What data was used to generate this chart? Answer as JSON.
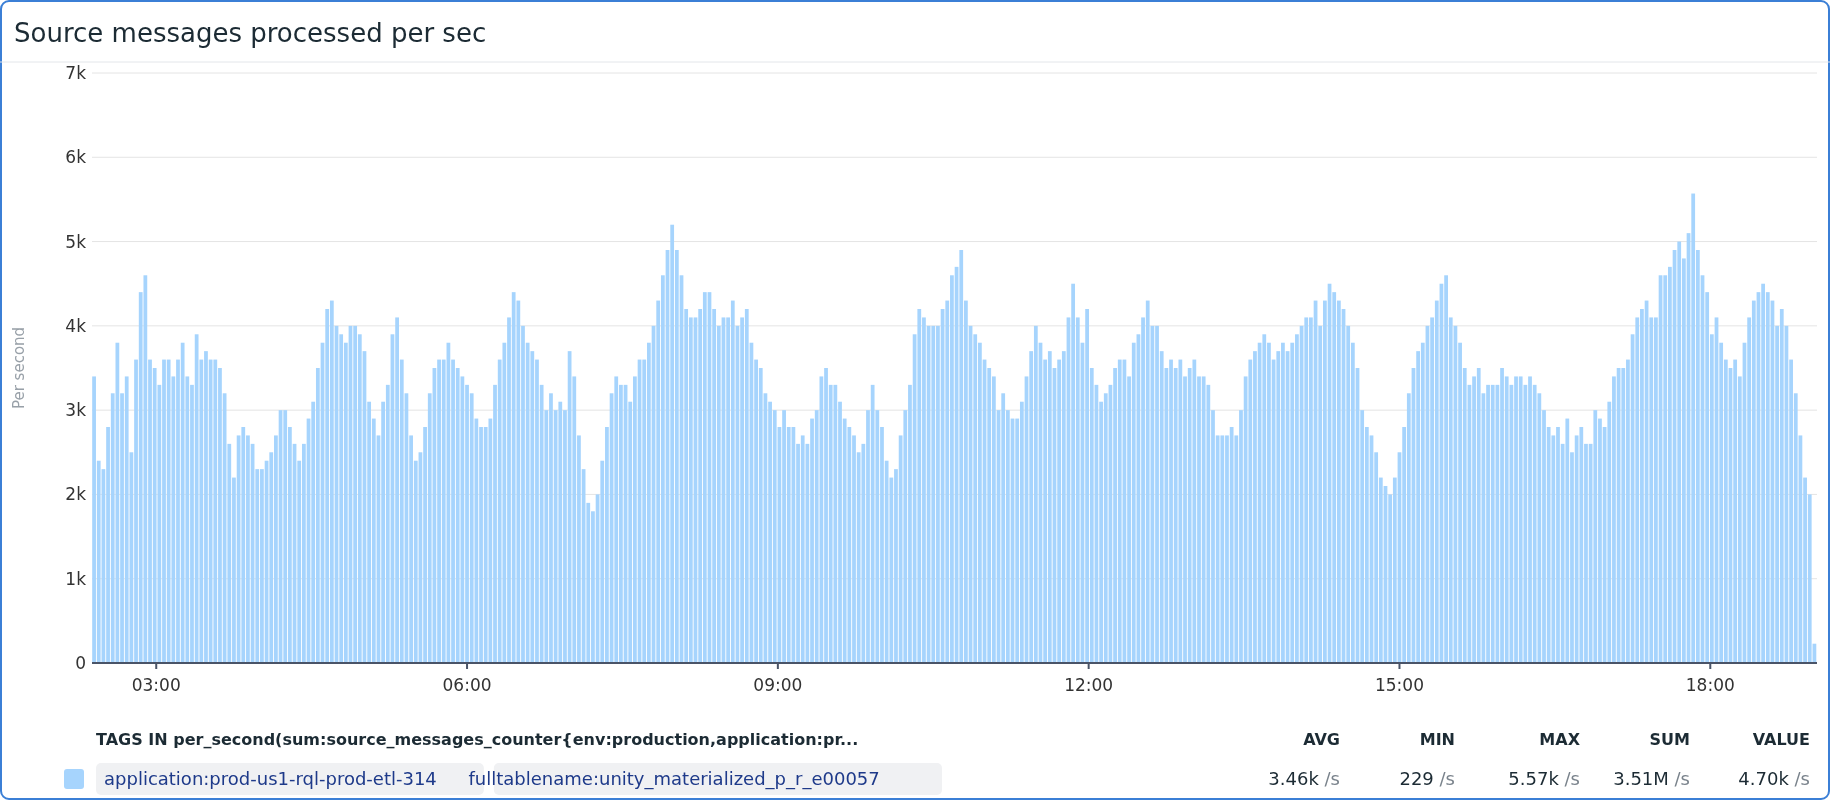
{
  "chart_data": {
    "type": "bar",
    "title": "Source messages processed per sec",
    "ylabel": "Per second",
    "legend_title": "TAGS IN per_second(sum:source_messages_counter{env:production,application:pr...",
    "annotations": [
      "AVG",
      "MIN",
      "MAX",
      "SUM",
      "VALUE",
      "3.46k /s",
      "229 /s",
      "5.57k /s",
      "3.51M /s",
      "4.70k /s"
    ],
    "grid": "y",
    "legend": "bottom",
    "xlim": [
      2.38,
      19.03
    ],
    "xticks": [
      {
        "value": 3,
        "label": "03:00"
      },
      {
        "value": 6,
        "label": "06:00"
      },
      {
        "value": 9,
        "label": "09:00"
      },
      {
        "value": 12,
        "label": "12:00"
      },
      {
        "value": 15,
        "label": "15:00"
      },
      {
        "value": 18,
        "label": "18:00"
      }
    ],
    "ylim": [
      0,
      7000
    ],
    "yticks": [
      {
        "value": 0,
        "label": "0"
      },
      {
        "value": 1000,
        "label": "1k"
      },
      {
        "value": 2000,
        "label": "2k"
      },
      {
        "value": 3000,
        "label": "3k"
      },
      {
        "value": 4000,
        "label": "4k"
      },
      {
        "value": 5000,
        "label": "5k"
      },
      {
        "value": 6000,
        "label": "6k"
      },
      {
        "value": 7000,
        "label": "7k"
      }
    ],
    "x": [
      2.4,
      2.445,
      2.49,
      2.535,
      2.58,
      2.625,
      2.67,
      2.715,
      2.76,
      2.805,
      2.85,
      2.895,
      2.94,
      2.985,
      3.03,
      3.075,
      3.12,
      3.165,
      3.21,
      3.255,
      3.3,
      3.345,
      3.39,
      3.435,
      3.48,
      3.525,
      3.57,
      3.615,
      3.66,
      3.705,
      3.75,
      3.795,
      3.84,
      3.885,
      3.93,
      3.975,
      4.02,
      4.065,
      4.11,
      4.155,
      4.2,
      4.245,
      4.29,
      4.335,
      4.38,
      4.425,
      4.47,
      4.515,
      4.56,
      4.605,
      4.65,
      4.695,
      4.74,
      4.785,
      4.83,
      4.875,
      4.92,
      4.965,
      5.01,
      5.055,
      5.1,
      5.145,
      5.19,
      5.235,
      5.28,
      5.325,
      5.37,
      5.415,
      5.46,
      5.505,
      5.55,
      5.595,
      5.64,
      5.685,
      5.73,
      5.775,
      5.82,
      5.865,
      5.91,
      5.955,
      6,
      6.045,
      6.09,
      6.135,
      6.18,
      6.225,
      6.27,
      6.315,
      6.36,
      6.405,
      6.45,
      6.495,
      6.54,
      6.585,
      6.63,
      6.675,
      6.72,
      6.765,
      6.81,
      6.855,
      6.9,
      6.945,
      6.99,
      7.035,
      7.08,
      7.125,
      7.17,
      7.215,
      7.26,
      7.305,
      7.35,
      7.395,
      7.44,
      7.485,
      7.53,
      7.575,
      7.62,
      7.665,
      7.71,
      7.755,
      7.8,
      7.845,
      7.89,
      7.935,
      7.98,
      8.025,
      8.07,
      8.115,
      8.16,
      8.205,
      8.25,
      8.295,
      8.34,
      8.385,
      8.43,
      8.475,
      8.52,
      8.565,
      8.61,
      8.655,
      8.7,
      8.745,
      8.79,
      8.835,
      8.88,
      8.925,
      8.97,
      9.015,
      9.06,
      9.105,
      9.15,
      9.195,
      9.24,
      9.285,
      9.33,
      9.375,
      9.42,
      9.465,
      9.51,
      9.555,
      9.6,
      9.645,
      9.69,
      9.735,
      9.78,
      9.825,
      9.87,
      9.915,
      9.96,
      10.005,
      10.05,
      10.095,
      10.14,
      10.185,
      10.23,
      10.275,
      10.32,
      10.365,
      10.41,
      10.455,
      10.5,
      10.545,
      10.59,
      10.635,
      10.68,
      10.725,
      10.77,
      10.815,
      10.86,
      10.905,
      10.95,
      10.995,
      11.04,
      11.085,
      11.13,
      11.175,
      11.22,
      11.265,
      11.31,
      11.355,
      11.4,
      11.445,
      11.49,
      11.535,
      11.58,
      11.625,
      11.67,
      11.715,
      11.76,
      11.805,
      11.85,
      11.895,
      11.94,
      11.985,
      12.03,
      12.075,
      12.12,
      12.165,
      12.21,
      12.255,
      12.3,
      12.345,
      12.39,
      12.435,
      12.48,
      12.525,
      12.57,
      12.615,
      12.66,
      12.705,
      12.75,
      12.795,
      12.84,
      12.885,
      12.93,
      12.975,
      13.02,
      13.065,
      13.11,
      13.155,
      13.2,
      13.245,
      13.29,
      13.335,
      13.38,
      13.425,
      13.47,
      13.515,
      13.56,
      13.605,
      13.65,
      13.695,
      13.74,
      13.785,
      13.83,
      13.875,
      13.92,
      13.965,
      14.01,
      14.055,
      14.1,
      14.145,
      14.19,
      14.235,
      14.28,
      14.325,
      14.37,
      14.415,
      14.46,
      14.505,
      14.55,
      14.595,
      14.64,
      14.685,
      14.73,
      14.775,
      14.82,
      14.865,
      14.91,
      14.955,
      15,
      15.045,
      15.09,
      15.135,
      15.18,
      15.225,
      15.27,
      15.315,
      15.36,
      15.405,
      15.45,
      15.495,
      15.54,
      15.585,
      15.63,
      15.675,
      15.72,
      15.765,
      15.81,
      15.855,
      15.9,
      15.945,
      15.99,
      16.035,
      16.08,
      16.125,
      16.17,
      16.215,
      16.26,
      16.305,
      16.35,
      16.395,
      16.44,
      16.485,
      16.53,
      16.575,
      16.62,
      16.665,
      16.71,
      16.755,
      16.8,
      16.845,
      16.89,
      16.935,
      16.98,
      17.025,
      17.07,
      17.115,
      17.16,
      17.205,
      17.25,
      17.295,
      17.34,
      17.385,
      17.43,
      17.475,
      17.52,
      17.565,
      17.61,
      17.655,
      17.7,
      17.745,
      17.79,
      17.835,
      17.88,
      17.925,
      17.97,
      18.015,
      18.06,
      18.105,
      18.15,
      18.195,
      18.24,
      18.285,
      18.33,
      18.375,
      18.42,
      18.465,
      18.51,
      18.555,
      18.6,
      18.645,
      18.69,
      18.735,
      18.78,
      18.825,
      18.87,
      18.915,
      18.96,
      19.005
    ],
    "series": [
      {
        "name": "application:prod-us1-rql-prod-etl-314 fulltablename:unity_materialized_p_r_e00057",
        "color": "#a6d4fd",
        "values": [
          3400,
          2400,
          2300,
          2800,
          3200,
          3800,
          3200,
          3400,
          2500,
          3600,
          4400,
          4600,
          3600,
          3500,
          3300,
          3600,
          3600,
          3400,
          3600,
          3800,
          3400,
          3300,
          3900,
          3600,
          3700,
          3600,
          3600,
          3500,
          3200,
          2600,
          2200,
          2700,
          2800,
          2700,
          2600,
          2300,
          2300,
          2400,
          2500,
          2700,
          3000,
          3000,
          2800,
          2600,
          2400,
          2600,
          2900,
          3100,
          3500,
          3800,
          4200,
          4300,
          4000,
          3900,
          3800,
          4000,
          4000,
          3900,
          3700,
          3100,
          2900,
          2700,
          3100,
          3300,
          3900,
          4100,
          3600,
          3200,
          2700,
          2400,
          2500,
          2800,
          3200,
          3500,
          3600,
          3600,
          3800,
          3600,
          3500,
          3400,
          3300,
          3200,
          2900,
          2800,
          2800,
          2900,
          3300,
          3600,
          3800,
          4100,
          4400,
          4300,
          4000,
          3800,
          3700,
          3600,
          3300,
          3000,
          3200,
          3000,
          3100,
          3000,
          3700,
          3400,
          2700,
          2300,
          1900,
          1800,
          2000,
          2400,
          2800,
          3200,
          3400,
          3300,
          3300,
          3100,
          3400,
          3600,
          3600,
          3800,
          4000,
          4300,
          4600,
          4900,
          5200,
          4900,
          4600,
          4200,
          4100,
          4100,
          4200,
          4400,
          4400,
          4200,
          4000,
          4100,
          4100,
          4300,
          4000,
          4100,
          4200,
          3800,
          3600,
          3500,
          3200,
          3100,
          3000,
          2800,
          3000,
          2800,
          2800,
          2600,
          2700,
          2600,
          2900,
          3000,
          3400,
          3500,
          3300,
          3300,
          3100,
          2900,
          2800,
          2700,
          2500,
          2600,
          3000,
          3300,
          3000,
          2800,
          2400,
          2200,
          2300,
          2700,
          3000,
          3300,
          3900,
          4200,
          4100,
          4000,
          4000,
          4000,
          4200,
          4300,
          4600,
          4700,
          4900,
          4300,
          4000,
          3900,
          3800,
          3600,
          3500,
          3400,
          3000,
          3200,
          3000,
          2900,
          2900,
          3100,
          3400,
          3700,
          4000,
          3800,
          3600,
          3700,
          3500,
          3600,
          3700,
          4100,
          4500,
          4100,
          3800,
          4200,
          3500,
          3300,
          3100,
          3200,
          3300,
          3500,
          3600,
          3600,
          3400,
          3800,
          3900,
          4100,
          4300,
          4000,
          4000,
          3700,
          3500,
          3600,
          3500,
          3600,
          3400,
          3500,
          3600,
          3400,
          3400,
          3300,
          3000,
          2700,
          2700,
          2700,
          2800,
          2700,
          3000,
          3400,
          3600,
          3700,
          3800,
          3900,
          3800,
          3600,
          3700,
          3800,
          3700,
          3800,
          3900,
          4000,
          4100,
          4100,
          4300,
          4000,
          4300,
          4500,
          4400,
          4300,
          4200,
          4000,
          3800,
          3500,
          3000,
          2800,
          2700,
          2500,
          2200,
          2100,
          2000,
          2200,
          2500,
          2800,
          3200,
          3500,
          3700,
          3800,
          4000,
          4100,
          4300,
          4500,
          4600,
          4100,
          4000,
          3800,
          3500,
          3300,
          3400,
          3500,
          3200,
          3300,
          3300,
          3300,
          3500,
          3400,
          3300,
          3400,
          3400,
          3300,
          3400,
          3300,
          3200,
          3000,
          2800,
          2700,
          2800,
          2600,
          2900,
          2500,
          2700,
          2800,
          2600,
          2600,
          3000,
          2900,
          2800,
          3100,
          3400,
          3500,
          3500,
          3600,
          3900,
          4100,
          4200,
          4300,
          4100,
          4100,
          4600,
          4600,
          4700,
          4900,
          5000,
          4800,
          5100,
          5570,
          4900,
          4600,
          4400,
          3900,
          4100,
          3800,
          3600,
          3500,
          3600,
          3400,
          3800,
          4100,
          4300,
          4400,
          4500,
          4400,
          4300,
          4000,
          4200,
          4000,
          3600,
          3200,
          2700,
          2200,
          2000,
          229
        ]
      }
    ]
  }
}
